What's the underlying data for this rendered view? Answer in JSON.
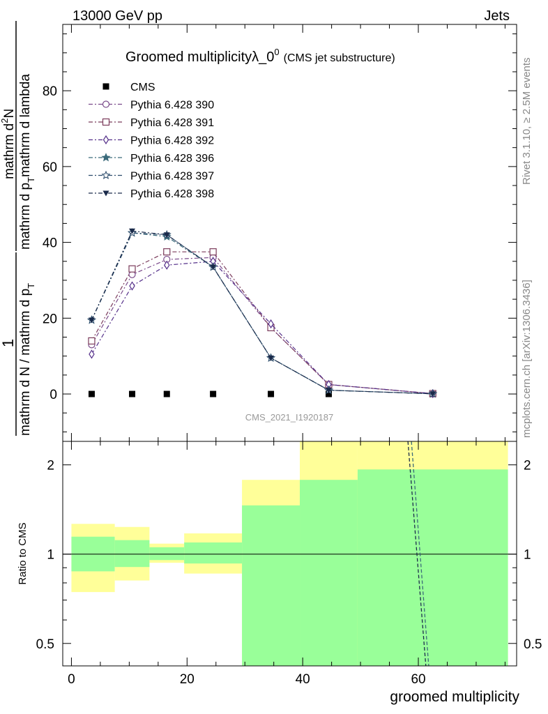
{
  "header": {
    "left": "13000 GeV pp",
    "right": "Jets"
  },
  "side_labels": {
    "rivet": "Rivet 3.1.10, ≥ 2.5M events",
    "mcplots": "mcplots.cern.ch [arXiv:1306.3436]"
  },
  "chart_data": [
    {
      "type": "line",
      "title": "Groomed multiplicityλ_0",
      "title_sup": "0",
      "subtitle": "(CMS jet substructure)",
      "watermark": "CMS_2021_I1920187",
      "ylabel_num": "1",
      "ylabel_den": "mathrm d N / mathrm d p",
      "ylabel_den_sub": "T",
      "ylabel_rhs_num": "mathrm d",
      "ylabel_rhs_num_sup": "2",
      "ylabel_rhs_num_end": "N",
      "ylabel_rhs_den": "mathrm d p",
      "ylabel_rhs_den_sub": "T",
      "ylabel_rhs_den_end": "mathrm d lambda",
      "xlim": [
        -1.5,
        77
      ],
      "ylim": [
        -12.5,
        97.5
      ],
      "yticks": [
        0,
        20,
        40,
        60,
        80
      ],
      "grid": false,
      "legend_position": "top-left",
      "x": [
        3.5,
        10.5,
        16.5,
        24.5,
        34.5,
        44.5,
        62.5
      ],
      "series": [
        {
          "name": "CMS",
          "marker": "square-filled",
          "color": "#000000",
          "line": false,
          "values": [
            0,
            0,
            0,
            0,
            0,
            0,
            0
          ]
        },
        {
          "name": "Pythia 6.428 390",
          "marker": "circle-open",
          "color": "#7a4a8a",
          "line": true,
          "values": [
            13.0,
            31.5,
            35.5,
            36.0,
            17.5,
            2.5,
            0.1
          ]
        },
        {
          "name": "Pythia 6.428 391",
          "marker": "square-open",
          "color": "#7a3a5a",
          "line": true,
          "values": [
            14.0,
            33.0,
            37.5,
            37.5,
            17.5,
            2.5,
            0.1
          ]
        },
        {
          "name": "Pythia 6.428 392",
          "marker": "diamond-open",
          "color": "#55308a",
          "line": true,
          "values": [
            10.5,
            28.5,
            34.0,
            35.0,
            18.5,
            2.5,
            0.1
          ]
        },
        {
          "name": "Pythia 6.428 396",
          "marker": "star-filled",
          "color": "#3a6a7a",
          "line": true,
          "values": [
            19.5,
            42.5,
            41.5,
            33.5,
            9.5,
            1.0,
            0.05
          ]
        },
        {
          "name": "Pythia 6.428 397",
          "marker": "star-open",
          "color": "#2a4a6a",
          "line": true,
          "values": [
            19.5,
            42.5,
            42.0,
            33.5,
            9.5,
            1.0,
            0.05
          ]
        },
        {
          "name": "Pythia 6.428 398",
          "marker": "triangle-down-filled",
          "color": "#1a2a4a",
          "line": true,
          "values": [
            19.5,
            43.0,
            42.0,
            33.5,
            9.5,
            1.0,
            0.05
          ]
        }
      ]
    },
    {
      "type": "area",
      "ylabel": "Ratio to CMS",
      "xlabel": "groomed multiplicity",
      "scale": "log",
      "ylim": [
        0.42,
        2.4
      ],
      "yticks": [
        0.5,
        1,
        2
      ],
      "xticks": [
        0,
        20,
        40,
        60
      ],
      "reference_line": 1,
      "band_colors": {
        "inner": "#99ff99",
        "outer": "#ffff99"
      },
      "bins": [
        {
          "xlo": 0,
          "xhi": 7.5,
          "inner": [
            0.875,
            1.145
          ],
          "outer": [
            0.745,
            1.265
          ]
        },
        {
          "xlo": 7.5,
          "xhi": 13.5,
          "inner": [
            0.905,
            1.115
          ],
          "outer": [
            0.815,
            1.235
          ]
        },
        {
          "xlo": 13.5,
          "xhi": 19.5,
          "inner": [
            0.955,
            1.055
          ],
          "outer": [
            0.935,
            1.085
          ]
        },
        {
          "xlo": 19.5,
          "xhi": 29.5,
          "inner": [
            0.93,
            1.095
          ],
          "outer": [
            0.86,
            1.175
          ]
        },
        {
          "xlo": 29.5,
          "xhi": 39.5,
          "inner": [
            0.42,
            1.46
          ],
          "outer": [
            0.42,
            1.78
          ]
        },
        {
          "xlo": 39.5,
          "xhi": 49.5,
          "inner": [
            0.42,
            1.78
          ],
          "outer": [
            0.42,
            2.4
          ]
        },
        {
          "xlo": 49.5,
          "xhi": 75.5,
          "inner": [
            0.42,
            1.93
          ],
          "outer": [
            0.42,
            2.4
          ]
        }
      ],
      "series": [
        {
          "name": "Pythia 6.428 396",
          "color": "#3a6a7a",
          "x": [
            58.8,
            61.8
          ],
          "values": [
            2.4,
            0.42
          ]
        },
        {
          "name": "Pythia 6.428 398",
          "color": "#1a2a4a",
          "x": [
            58.2,
            61.3
          ],
          "values": [
            2.4,
            0.42
          ]
        }
      ]
    }
  ]
}
